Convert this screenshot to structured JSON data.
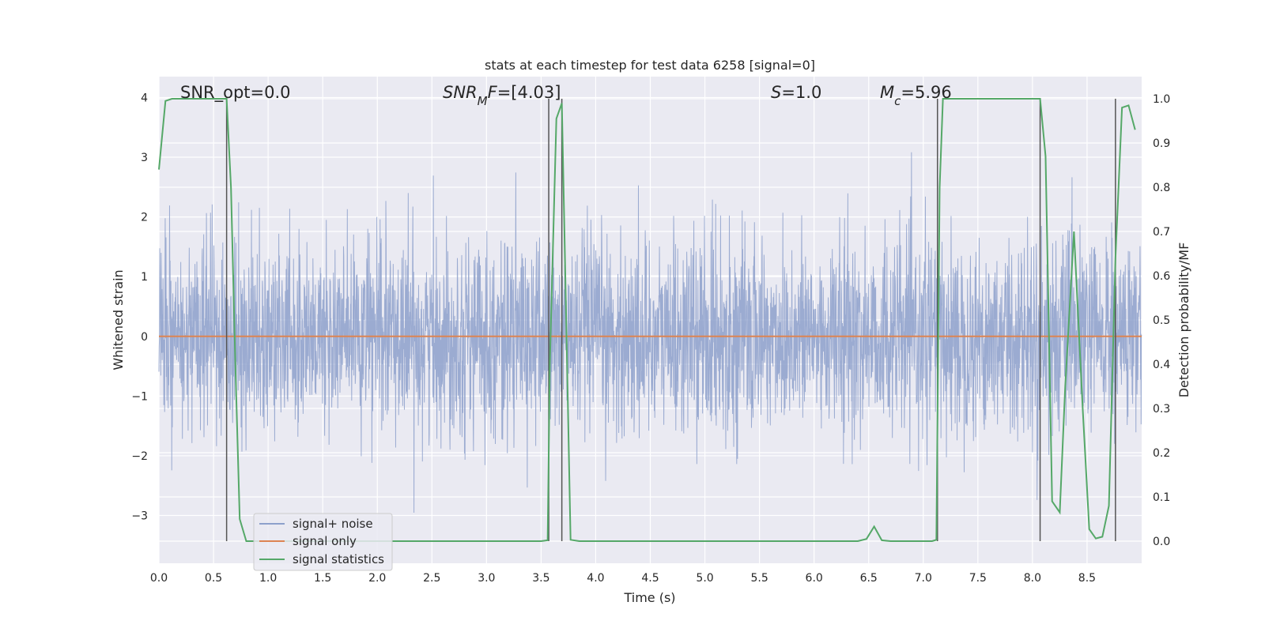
{
  "chart_data": {
    "type": "line",
    "title": "stats at each timestep for test data 6258 [signal=0]",
    "xlabel": "Time (s)",
    "ylabel": "Whitened strain",
    "y2label": "Detection probability/MF",
    "xlim": [
      0,
      9.0
    ],
    "ylim": [
      -3.8,
      4.35
    ],
    "y2lim": [
      -0.05,
      1.05
    ],
    "grid": true,
    "legend_position": "lower-left",
    "x_ticks": [
      "0.0",
      "0.5",
      "1.0",
      "1.5",
      "2.0",
      "2.5",
      "3.0",
      "3.5",
      "4.0",
      "4.5",
      "5.0",
      "5.5",
      "6.0",
      "6.5",
      "7.0",
      "7.5",
      "8.0",
      "8.5"
    ],
    "y_ticks": [
      "−3",
      "−2",
      "−1",
      "0",
      "1",
      "2",
      "3",
      "4"
    ],
    "y2_ticks": [
      "0.0",
      "0.1",
      "0.2",
      "0.3",
      "0.4",
      "0.5",
      "0.6",
      "0.7",
      "0.8",
      "0.9",
      "1.0"
    ],
    "annotations": {
      "snr_opt": "SNR_opt=0.0",
      "snr_mf": "SNR_MF=[4.03]",
      "s": "S=1.0",
      "mc": "M_c=5.96"
    },
    "vlines_x": [
      0.62,
      3.57,
      3.69,
      7.13,
      8.07,
      8.76
    ],
    "series": [
      {
        "name": "signal+ noise",
        "color": "#8da0cb",
        "description_axis": "left",
        "noise_envelope": {
          "typical_amplitude": 1.3,
          "peak_amplitude": 3.4
        }
      },
      {
        "name": "signal only",
        "color": "#dd8452",
        "axis": "left",
        "x": [
          0,
          9.0
        ],
        "y": [
          0,
          0
        ]
      },
      {
        "name": "signal statistics",
        "color": "#55a868",
        "axis": "right",
        "x": [
          0.0,
          0.06,
          0.12,
          0.25,
          0.4,
          0.55,
          0.62,
          0.66,
          0.7,
          0.74,
          0.8,
          1.5,
          2.5,
          3.3,
          3.5,
          3.56,
          3.58,
          3.64,
          3.69,
          3.73,
          3.77,
          3.85,
          4.5,
          5.5,
          6.4,
          6.48,
          6.55,
          6.62,
          6.7,
          7.0,
          7.08,
          7.12,
          7.15,
          7.18,
          7.25,
          7.5,
          8.0,
          8.07,
          8.12,
          8.18,
          8.25,
          8.3,
          8.38,
          8.46,
          8.52,
          8.58,
          8.64,
          8.7,
          8.76,
          8.82,
          8.88,
          8.94
        ],
        "y": [
          0.84,
          0.995,
          1.0,
          1.0,
          1.0,
          1.0,
          1.0,
          0.8,
          0.4,
          0.05,
          0.0,
          0.0,
          0.0,
          0.0,
          0.0,
          0.002,
          0.4,
          0.955,
          0.99,
          0.5,
          0.003,
          0.0,
          0.0,
          0.0,
          0.0,
          0.005,
          0.033,
          0.002,
          0.0,
          0.0,
          0.0,
          0.003,
          0.8,
          1.0,
          1.0,
          1.0,
          1.0,
          1.0,
          0.87,
          0.09,
          0.065,
          0.35,
          0.7,
          0.3,
          0.027,
          0.006,
          0.01,
          0.08,
          0.64,
          0.98,
          0.985,
          0.93
        ]
      }
    ]
  }
}
